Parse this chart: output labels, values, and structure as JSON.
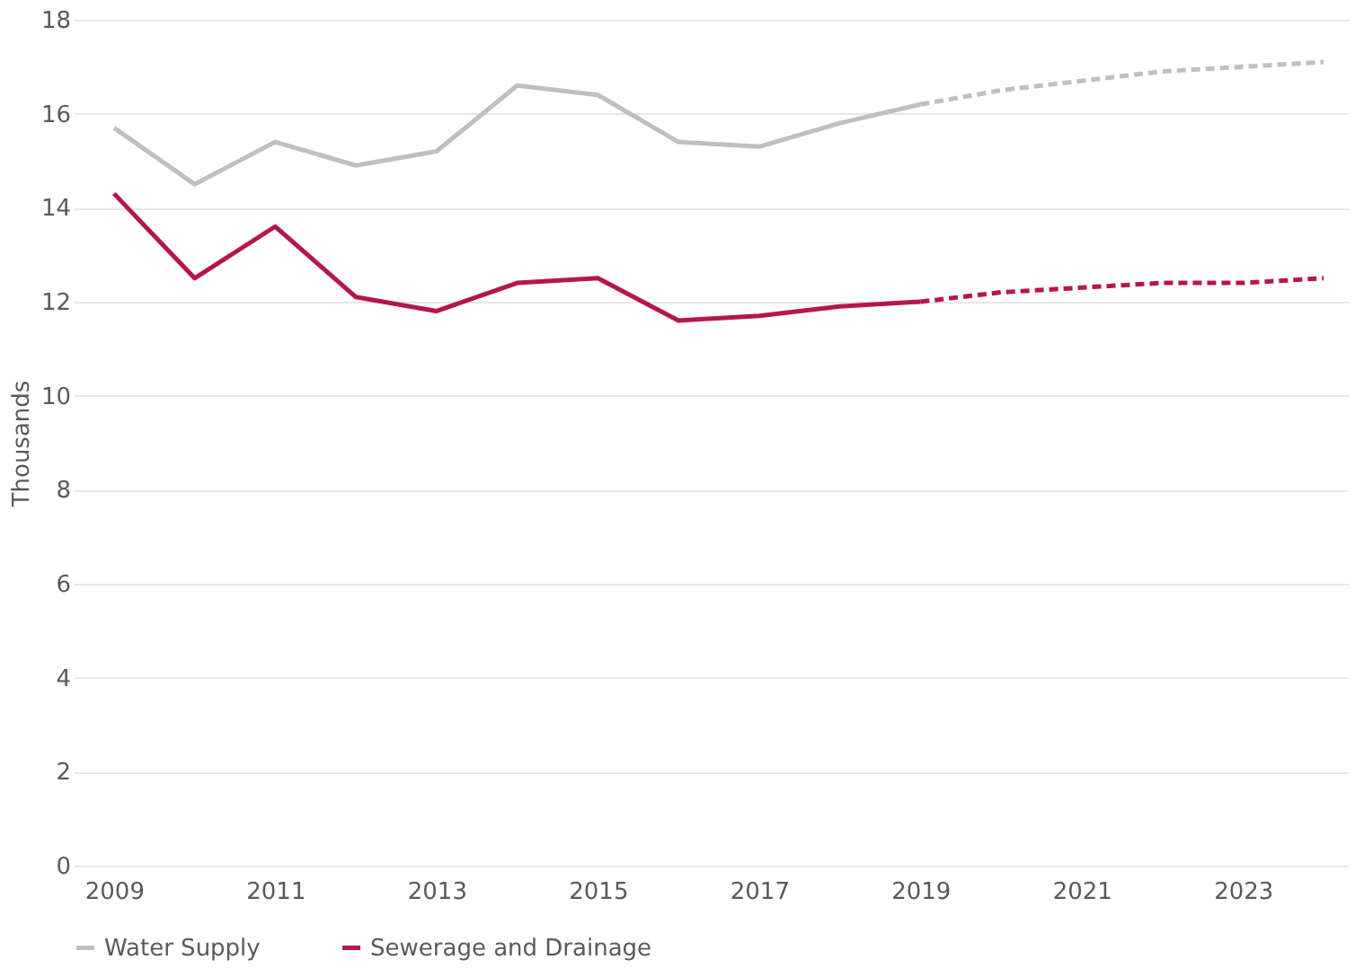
{
  "chart_data": {
    "type": "line",
    "ylabel": "Thousands",
    "xlim": [
      2008.5,
      2024.3
    ],
    "xticks": [
      2009,
      2011,
      2013,
      2015,
      2017,
      2019,
      2021,
      2023
    ],
    "ylim": [
      0,
      18
    ],
    "yticks": [
      0,
      2,
      4,
      6,
      8,
      10,
      12,
      14,
      16,
      18
    ],
    "grid": "y",
    "legend": "bottom",
    "marker": "none",
    "series": [
      {
        "name": "Water Supply",
        "color": "#bfbfbf",
        "line_style": "solid",
        "x": [
          2009,
          2010,
          2011,
          2012,
          2013,
          2014,
          2015,
          2016,
          2017,
          2018,
          2019
        ],
        "values": [
          15.7,
          14.5,
          15.4,
          14.9,
          15.2,
          16.6,
          16.4,
          15.4,
          15.3,
          15.8,
          16.2
        ]
      },
      {
        "name": "Sewerage and Drainage",
        "color": "#b5164b",
        "line_style": "solid",
        "x": [
          2009,
          2010,
          2011,
          2012,
          2013,
          2014,
          2015,
          2016,
          2017,
          2018,
          2019
        ],
        "values": [
          14.3,
          12.5,
          13.6,
          12.1,
          11.8,
          12.4,
          12.5,
          11.6,
          11.7,
          11.9,
          12.0
        ]
      },
      {
        "color": "#bfbfbf",
        "line_style": "dashed",
        "x": [
          2019,
          2020,
          2021,
          2022,
          2023,
          2024
        ],
        "values": [
          16.2,
          16.5,
          16.7,
          16.9,
          17.0,
          17.1
        ]
      },
      {
        "color": "#b5164b",
        "line_style": "dashed",
        "x": [
          2019,
          2020,
          2021,
          2022,
          2023,
          2024
        ],
        "values": [
          12.0,
          12.2,
          12.3,
          12.4,
          12.4,
          12.5
        ]
      }
    ]
  }
}
